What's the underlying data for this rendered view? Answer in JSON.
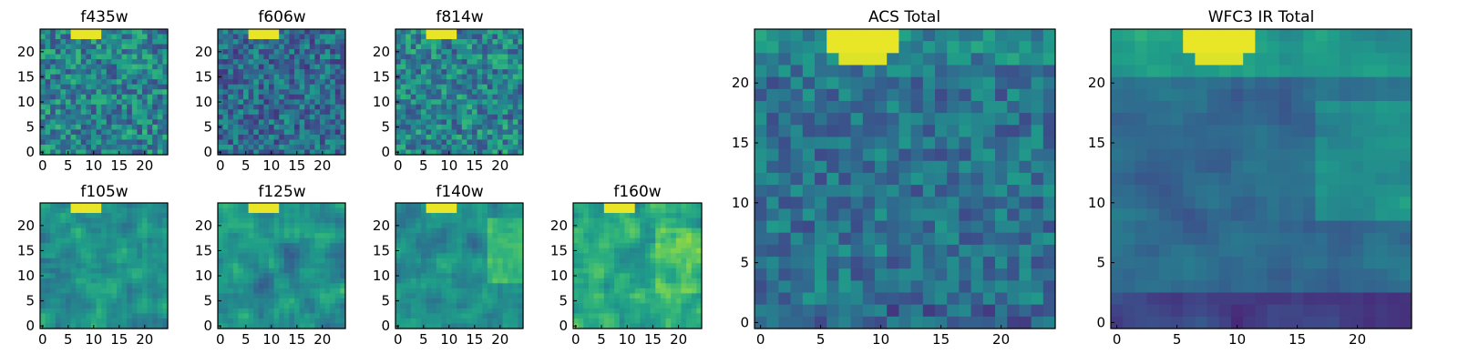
{
  "chart_data": [
    {
      "type": "heatmap",
      "title": "f435w",
      "colormap": "viridis",
      "grid_size": 25,
      "pattern": "noise",
      "xlim": [
        0,
        24
      ],
      "ylim": [
        0,
        24
      ],
      "xticks": [
        0,
        5,
        10,
        15,
        20
      ],
      "yticks": [
        0,
        5,
        10,
        15,
        20
      ]
    },
    {
      "type": "heatmap",
      "title": "f606w",
      "colormap": "viridis",
      "grid_size": 25,
      "pattern": "noise-dark",
      "xlim": [
        0,
        24
      ],
      "ylim": [
        0,
        24
      ],
      "xticks": [
        0,
        5,
        10,
        15,
        20
      ],
      "yticks": [
        0,
        5,
        10,
        15,
        20
      ]
    },
    {
      "type": "heatmap",
      "title": "f814w",
      "colormap": "viridis",
      "grid_size": 25,
      "pattern": "noise",
      "xlim": [
        0,
        24
      ],
      "ylim": [
        0,
        24
      ],
      "xticks": [
        0,
        5,
        10,
        15,
        20
      ],
      "yticks": [
        0,
        5,
        10,
        15,
        20
      ]
    },
    {
      "type": "heatmap",
      "title": "f105w",
      "colormap": "viridis",
      "grid_size": 25,
      "pattern": "smooth",
      "xlim": [
        0,
        24
      ],
      "ylim": [
        0,
        24
      ],
      "xticks": [
        0,
        5,
        10,
        15,
        20
      ],
      "yticks": [
        0,
        5,
        10,
        15,
        20
      ]
    },
    {
      "type": "heatmap",
      "title": "f125w",
      "colormap": "viridis",
      "grid_size": 25,
      "pattern": "smooth",
      "xlim": [
        0,
        24
      ],
      "ylim": [
        0,
        24
      ],
      "xticks": [
        0,
        5,
        10,
        15,
        20
      ],
      "yticks": [
        0,
        5,
        10,
        15,
        20
      ]
    },
    {
      "type": "heatmap",
      "title": "f140w",
      "colormap": "viridis",
      "grid_size": 25,
      "pattern": "bright-right",
      "xlim": [
        0,
        24
      ],
      "ylim": [
        0,
        24
      ],
      "xticks": [
        0,
        5,
        10,
        15,
        20
      ],
      "yticks": [
        0,
        5,
        10,
        15,
        20
      ]
    },
    {
      "type": "heatmap",
      "title": "f160w",
      "colormap": "viridis",
      "grid_size": 25,
      "pattern": "bright",
      "xlim": [
        0,
        24
      ],
      "ylim": [
        0,
        24
      ],
      "xticks": [
        0,
        5,
        10,
        15,
        20
      ],
      "yticks": [
        0,
        5,
        10,
        15,
        20
      ]
    },
    {
      "type": "heatmap",
      "title": "ACS Total",
      "colormap": "viridis",
      "grid_size": 25,
      "pattern": "total-acs",
      "xlim": [
        0,
        24
      ],
      "ylim": [
        0,
        24
      ],
      "xticks": [
        0,
        5,
        10,
        15,
        20
      ],
      "yticks": [
        0,
        5,
        10,
        15,
        20
      ]
    },
    {
      "type": "heatmap",
      "title": "WFC3 IR Total",
      "colormap": "viridis",
      "grid_size": 25,
      "pattern": "total-ir",
      "xlim": [
        0,
        24
      ],
      "ylim": [
        0,
        24
      ],
      "xticks": [
        0,
        5,
        10,
        15,
        20
      ],
      "yticks": [
        0,
        5,
        10,
        15,
        20
      ]
    }
  ]
}
